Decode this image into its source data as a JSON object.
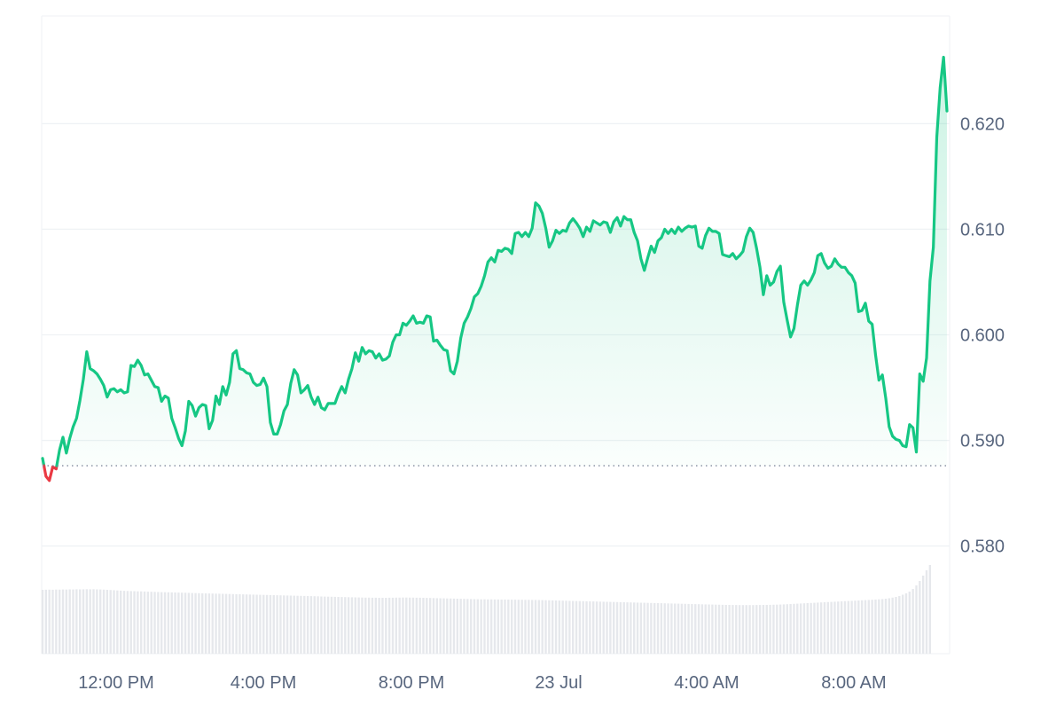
{
  "chart_data": {
    "type": "line",
    "title": "",
    "xlabel": "",
    "ylabel": "",
    "x_ticks": [
      "12:00 PM",
      "4:00 PM",
      "8:00 PM",
      "23 Jul",
      "4:00 AM",
      "8:00 AM"
    ],
    "y_ticks": [
      "0.580",
      "0.590",
      "0.600",
      "0.610",
      "0.620"
    ],
    "ylim": [
      0.5698,
      0.6302
    ],
    "grid": true,
    "reference_line": 0.5876,
    "colors": {
      "up": "#16c784",
      "down": "#ea3943",
      "grid": "#eff2f5",
      "reference": "#808a9d",
      "volume": "#e6e8ec"
    },
    "series": [
      {
        "values": [
          0.5883,
          0.5866,
          0.5862,
          0.5875,
          0.5873,
          0.5891,
          0.5903,
          0.5888,
          0.5902,
          0.5913,
          0.5921,
          0.5938,
          0.5958,
          0.5984,
          0.5968,
          0.5966,
          0.5963,
          0.5958,
          0.5952,
          0.5941,
          0.5948,
          0.5949,
          0.5946,
          0.5948,
          0.5945,
          0.5946,
          0.5971,
          0.597,
          0.5976,
          0.5971,
          0.5962,
          0.5963,
          0.5957,
          0.5951,
          0.595,
          0.5937,
          0.5942,
          0.594,
          0.5921,
          0.5912,
          0.5902,
          0.5895,
          0.5909,
          0.5937,
          0.5933,
          0.5923,
          0.5931,
          0.5934,
          0.5933,
          0.5911,
          0.5919,
          0.5942,
          0.5934,
          0.5951,
          0.5943,
          0.5955,
          0.5982,
          0.5985,
          0.5968,
          0.5967,
          0.5964,
          0.5963,
          0.5955,
          0.5952,
          0.5953,
          0.5959,
          0.5951,
          0.5917,
          0.5906,
          0.5906,
          0.5915,
          0.5928,
          0.5934,
          0.5954,
          0.5967,
          0.5962,
          0.5945,
          0.5948,
          0.5952,
          0.5941,
          0.5934,
          0.5941,
          0.5931,
          0.5929,
          0.5935,
          0.5935,
          0.5935,
          0.5944,
          0.5951,
          0.5945,
          0.5958,
          0.5968,
          0.5983,
          0.5975,
          0.5988,
          0.5982,
          0.5985,
          0.5984,
          0.5978,
          0.5982,
          0.5976,
          0.5977,
          0.598,
          0.5993,
          0.6,
          0.6,
          0.6011,
          0.6009,
          0.6013,
          0.6018,
          0.6011,
          0.6012,
          0.6011,
          0.6018,
          0.6017,
          0.5994,
          0.5995,
          0.599,
          0.5986,
          0.5985,
          0.5966,
          0.5963,
          0.5975,
          0.5997,
          0.6011,
          0.6017,
          0.6025,
          0.6036,
          0.6039,
          0.6046,
          0.6056,
          0.6069,
          0.6073,
          0.6069,
          0.608,
          0.6079,
          0.6082,
          0.6081,
          0.6077,
          0.6096,
          0.6097,
          0.6093,
          0.6097,
          0.6093,
          0.6101,
          0.6125,
          0.6122,
          0.6115,
          0.6101,
          0.6083,
          0.6089,
          0.6099,
          0.6096,
          0.6099,
          0.6098,
          0.6106,
          0.611,
          0.6106,
          0.6101,
          0.6093,
          0.6102,
          0.6098,
          0.6108,
          0.6106,
          0.6104,
          0.6107,
          0.6106,
          0.6097,
          0.6107,
          0.6111,
          0.6103,
          0.6112,
          0.6109,
          0.6109,
          0.6097,
          0.6089,
          0.6072,
          0.6061,
          0.6073,
          0.6084,
          0.6078,
          0.6089,
          0.6092,
          0.61,
          0.6096,
          0.61,
          0.6096,
          0.6102,
          0.6098,
          0.6101,
          0.6103,
          0.6102,
          0.6103,
          0.6084,
          0.6082,
          0.6094,
          0.6101,
          0.6098,
          0.6098,
          0.6096,
          0.6076,
          0.6075,
          0.6074,
          0.6077,
          0.6072,
          0.6075,
          0.6079,
          0.6093,
          0.6101,
          0.6097,
          0.6082,
          0.6064,
          0.6038,
          0.6056,
          0.6047,
          0.605,
          0.606,
          0.6065,
          0.6031,
          0.6014,
          0.5998,
          0.6006,
          0.6028,
          0.6047,
          0.6051,
          0.6047,
          0.6052,
          0.6059,
          0.6075,
          0.6077,
          0.6068,
          0.6063,
          0.6065,
          0.6072,
          0.6067,
          0.6064,
          0.6064,
          0.6059,
          0.6056,
          0.6049,
          0.6022,
          0.6023,
          0.603,
          0.6013,
          0.601,
          0.5981,
          0.5957,
          0.5962,
          0.594,
          0.5913,
          0.5904,
          0.5901,
          0.59,
          0.5895,
          0.5894,
          0.5915,
          0.5912,
          0.5889,
          0.5963,
          0.5956,
          0.5978,
          0.6051,
          0.6083,
          0.6187,
          0.6234,
          0.6263,
          0.6212
        ]
      }
    ],
    "volume": [
      0.072,
      0.0721,
      0.0722,
      0.0721,
      0.0723,
      0.0722,
      0.0724,
      0.0723,
      0.0725,
      0.0724,
      0.0726,
      0.0725,
      0.0726,
      0.0727,
      0.0726,
      0.0727,
      0.0725,
      0.0724,
      0.0722,
      0.072,
      0.0718,
      0.0716,
      0.0713,
      0.0711,
      0.0709,
      0.0707,
      0.0706,
      0.0705,
      0.0703,
      0.0702,
      0.0701,
      0.0699,
      0.0698,
      0.0697,
      0.0695,
      0.0694,
      0.0693,
      0.0692,
      0.0691,
      0.069,
      0.0689,
      0.0688,
      0.0687,
      0.0686,
      0.0684,
      0.0683,
      0.0682,
      0.0681,
      0.068,
      0.0679,
      0.0678,
      0.0677,
      0.0676,
      0.0675,
      0.0674,
      0.0673,
      0.0672,
      0.0671,
      0.067,
      0.0669,
      0.0668,
      0.0667,
      0.0666,
      0.0665,
      0.0664,
      0.0663,
      0.0662,
      0.0661,
      0.066,
      0.0659,
      0.0658,
      0.0657,
      0.0656,
      0.0655,
      0.0654,
      0.0653,
      0.0652,
      0.0651,
      0.065,
      0.0649,
      0.0648,
      0.0647,
      0.0645,
      0.0644,
      0.0643,
      0.0642,
      0.0641,
      0.064,
      0.0639,
      0.0638,
      0.0637,
      0.0636,
      0.0635,
      0.0634,
      0.0633,
      0.0632,
      0.0632,
      0.0631,
      0.0631,
      0.063,
      0.063,
      0.063,
      0.0631,
      0.0631,
      0.0632,
      0.0632,
      0.0633,
      0.0633,
      0.0632,
      0.0632,
      0.0631,
      0.0631,
      0.063,
      0.0629,
      0.0628,
      0.0627,
      0.0626,
      0.0625,
      0.0624,
      0.0623,
      0.0622,
      0.0621,
      0.062,
      0.0619,
      0.0618,
      0.0617,
      0.0616,
      0.0615,
      0.0614,
      0.0613,
      0.0613,
      0.0612,
      0.0612,
      0.0611,
      0.0611,
      0.061,
      0.061,
      0.061,
      0.0609,
      0.0609,
      0.0608,
      0.0608,
      0.0607,
      0.0607,
      0.0606,
      0.0606,
      0.0605,
      0.0604,
      0.0603,
      0.0602,
      0.0601,
      0.06,
      0.0599,
      0.0598,
      0.0597,
      0.0596,
      0.0595,
      0.0594,
      0.0593,
      0.0592,
      0.0591,
      0.059,
      0.0589,
      0.0588,
      0.0587,
      0.0586,
      0.0585,
      0.0584,
      0.0583,
      0.0582,
      0.0581,
      0.058,
      0.0579,
      0.0578,
      0.0577,
      0.0576,
      0.0575,
      0.0574,
      0.0573,
      0.0572,
      0.0571,
      0.057,
      0.0569,
      0.0568,
      0.0567,
      0.0566,
      0.0565,
      0.0564,
      0.0563,
      0.0562,
      0.0561,
      0.056,
      0.0559,
      0.0558,
      0.0557,
      0.0556,
      0.0555,
      0.0554,
      0.0553,
      0.0552,
      0.0551,
      0.055,
      0.055,
      0.0549,
      0.0549,
      0.0548,
      0.0548,
      0.0548,
      0.0548,
      0.0548,
      0.0549,
      0.0549,
      0.055,
      0.055,
      0.0551,
      0.0552,
      0.0553,
      0.0554,
      0.0556,
      0.0558,
      0.056,
      0.0562,
      0.0564,
      0.0566,
      0.0568,
      0.057,
      0.0572,
      0.0574,
      0.0576,
      0.0578,
      0.058,
      0.0582,
      0.0584,
      0.0586,
      0.0588,
      0.059,
      0.0592,
      0.0594,
      0.0596,
      0.0598,
      0.06,
      0.0602,
      0.0604,
      0.0606,
      0.0608,
      0.061,
      0.0613,
      0.0616,
      0.062,
      0.0625,
      0.0632,
      0.064,
      0.065,
      0.0665,
      0.068,
      0.07,
      0.073,
      0.077,
      0.082,
      0.088,
      0.094,
      0.1
    ]
  }
}
